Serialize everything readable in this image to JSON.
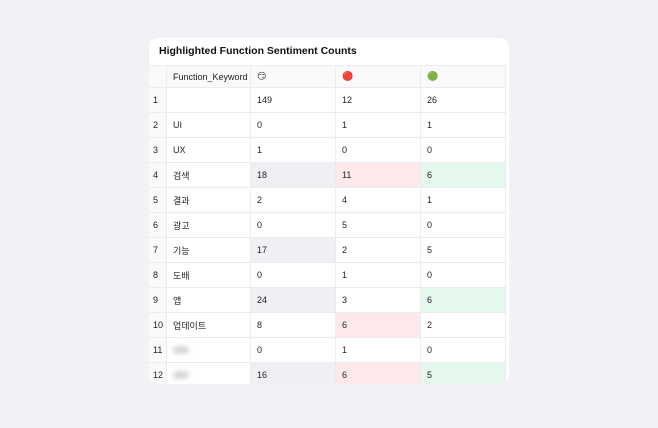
{
  "table": {
    "title": "Highlighted Function Sentiment Counts",
    "header": [
      "Function_Keyword",
      "😏",
      "🔴",
      "🟢"
    ],
    "rows": [
      [
        "1",
        null,
        "149",
        "12",
        "26"
      ],
      [
        "2",
        "UI",
        "0",
        "1",
        "1"
      ],
      [
        "3",
        "UX",
        "1",
        "0",
        "0"
      ],
      [
        "4",
        "검색",
        "18",
        "11",
        "6"
      ],
      [
        "5",
        "결과",
        "2",
        "4",
        "1"
      ],
      [
        "6",
        "광고",
        "0",
        "5",
        "0"
      ],
      [
        "7",
        "기능",
        "17",
        "2",
        "5"
      ],
      [
        "8",
        "도배",
        "0",
        "1",
        "0"
      ],
      [
        "9",
        "앱",
        "24",
        "3",
        "6"
      ],
      [
        "10",
        "업데이트",
        "8",
        "6",
        "2"
      ],
      [
        "11",
        null,
        "0",
        "1",
        "0"
      ],
      [
        "12",
        null,
        "16",
        "6",
        "5"
      ]
    ]
  }
}
